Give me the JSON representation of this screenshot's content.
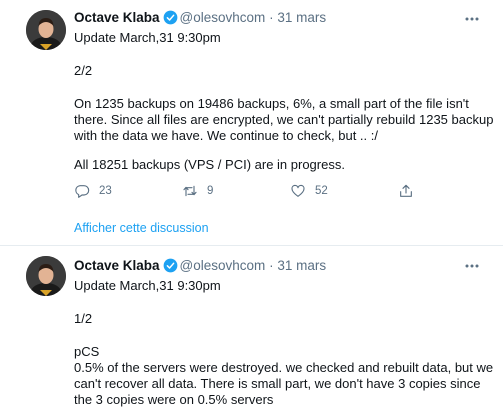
{
  "tweets": [
    {
      "author": "Octave Klaba",
      "handle": "@olesovhcom",
      "separator": "·",
      "time": "31 mars",
      "paragraphs": [
        "Update March,31 9:30pm",
        "2/2",
        "On 1235 backups on 19486 backups, 6%, a small part of the file isn't there. Since all files are encrypted, we can't partially rebuild 1235 backup with the data we have. We continue to check, but .. :/",
        "All 18251 backups (VPS / PCI) are in progress."
      ],
      "replies": "23",
      "retweets": "9",
      "likes": "52",
      "thread_link": "Afficher cette discussion"
    },
    {
      "author": "Octave Klaba",
      "handle": "@olesovhcom",
      "separator": "·",
      "time": "31 mars",
      "paragraphs": [
        "Update March,31 9:30pm",
        "1/2",
        "pCS",
        "0.5% of the servers were destroyed. we checked and rebuilt data, but we can't recover all data. There is small part, we don't have 3 copies since the 3 copies were on 0.5% servers"
      ]
    }
  ],
  "colors": {
    "accent": "#1da1f2",
    "muted": "#5b7083",
    "text": "#0f1419"
  }
}
